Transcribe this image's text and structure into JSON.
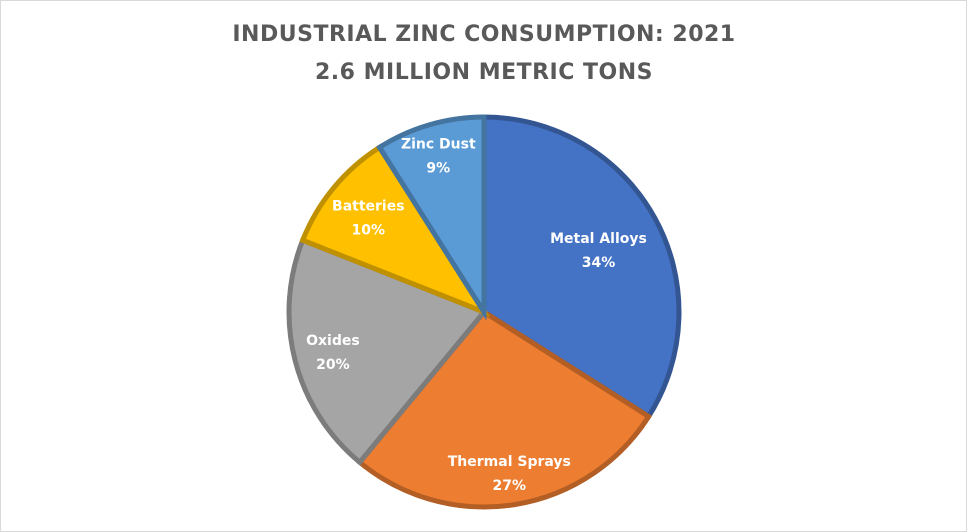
{
  "chart_data": {
    "type": "pie",
    "title": "INDUSTRIAL ZINC CONSUMPTION: 2021",
    "subtitle": "2.6 MILLION METRIC TONS",
    "categories": [
      "Metal Alloys",
      "Thermal Sprays",
      "Oxides",
      "Batteries",
      "Zinc Dust"
    ],
    "values": [
      34,
      27,
      20,
      10,
      9
    ],
    "value_labels": [
      "34%",
      "27%",
      "20%",
      "10%",
      "9%"
    ],
    "colors": [
      "#4472c4",
      "#ed7d31",
      "#a5a5a5",
      "#ffc000",
      "#5b9bd5"
    ]
  }
}
